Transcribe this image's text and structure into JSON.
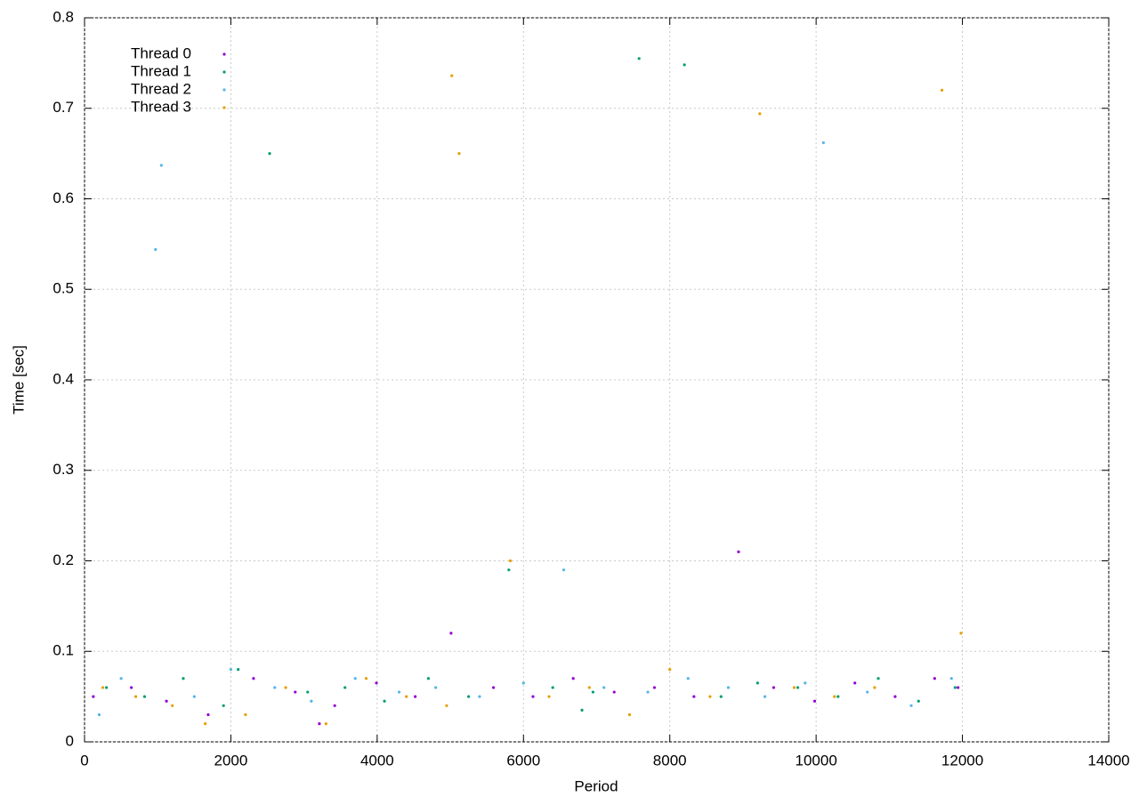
{
  "chart_data": {
    "type": "scatter",
    "xlabel": "Period",
    "ylabel": "Time [sec]",
    "xlim": [
      0,
      14000
    ],
    "xticks": [
      0,
      2000,
      4000,
      6000,
      8000,
      10000,
      12000,
      14000
    ],
    "ylim": [
      0,
      0.8
    ],
    "yticks": [
      0,
      0.1,
      0.2,
      0.3,
      0.4,
      0.5,
      0.6,
      0.7,
      0.8
    ],
    "grid": true,
    "legend": "top-left",
    "series": [
      {
        "name": "Thread 0",
        "color": "#9400d3",
        "x": [
          120,
          640,
          1120,
          1690,
          2310,
          2880,
          3420,
          3990,
          4520,
          5010,
          5590,
          6130,
          6680,
          7240,
          7790,
          8330,
          8940,
          9420,
          9980,
          10530,
          11080,
          11620,
          11940,
          3210
        ],
        "values": [
          0.05,
          0.06,
          0.045,
          0.03,
          0.07,
          0.055,
          0.04,
          0.065,
          0.05,
          0.12,
          0.06,
          0.05,
          0.07,
          0.055,
          0.06,
          0.05,
          0.21,
          0.06,
          0.045,
          0.065,
          0.05,
          0.07,
          0.06,
          0.02
        ]
      },
      {
        "name": "Thread 1",
        "color": "#009e73",
        "x": [
          300,
          820,
          1350,
          1900,
          2530,
          3050,
          3560,
          4100,
          4700,
          5250,
          5800,
          6400,
          6950,
          7580,
          8200,
          8700,
          9200,
          9750,
          10300,
          10850,
          11400,
          11900,
          2100,
          6800
        ],
        "values": [
          0.06,
          0.05,
          0.07,
          0.04,
          0.65,
          0.055,
          0.06,
          0.045,
          0.07,
          0.05,
          0.19,
          0.06,
          0.055,
          0.755,
          0.748,
          0.05,
          0.065,
          0.06,
          0.05,
          0.07,
          0.045,
          0.06,
          0.08,
          0.035
        ]
      },
      {
        "name": "Thread 2",
        "color": "#56b4e9",
        "x": [
          200,
          500,
          970,
          1050,
          1500,
          2000,
          2600,
          3100,
          3700,
          4300,
          4800,
          5400,
          6000,
          6550,
          7100,
          7700,
          8250,
          8800,
          9300,
          9850,
          10100,
          10700,
          11300,
          11850
        ],
        "values": [
          0.03,
          0.07,
          0.544,
          0.637,
          0.05,
          0.08,
          0.06,
          0.045,
          0.07,
          0.055,
          0.06,
          0.05,
          0.065,
          0.19,
          0.06,
          0.055,
          0.07,
          0.06,
          0.05,
          0.065,
          0.662,
          0.055,
          0.04,
          0.07
        ]
      },
      {
        "name": "Thread 3",
        "color": "#e69f00",
        "x": [
          250,
          700,
          1200,
          1650,
          2200,
          2750,
          3300,
          3850,
          4400,
          4950,
          5020,
          5120,
          5820,
          6350,
          6900,
          7450,
          8000,
          8550,
          9230,
          9700,
          10250,
          10800,
          11720,
          11980
        ],
        "values": [
          0.06,
          0.05,
          0.04,
          0.02,
          0.03,
          0.06,
          0.02,
          0.07,
          0.05,
          0.04,
          0.736,
          0.65,
          0.2,
          0.05,
          0.06,
          0.03,
          0.08,
          0.05,
          0.694,
          0.06,
          0.05,
          0.06,
          0.72,
          0.12
        ]
      }
    ]
  }
}
